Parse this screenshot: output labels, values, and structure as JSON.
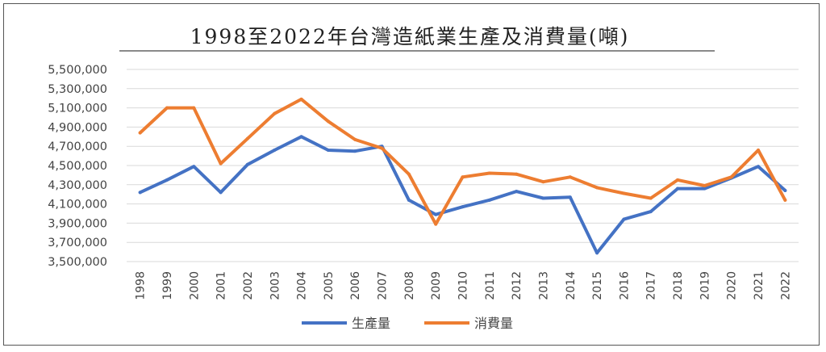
{
  "chart_data": {
    "type": "line",
    "title": "1998至2022年台灣造紙業生產及消費量(噸)",
    "xlabel": "",
    "ylabel": "",
    "x": [
      "1998",
      "1999",
      "2000",
      "2001",
      "2002",
      "2003",
      "2004",
      "2005",
      "2006",
      "2007",
      "2008",
      "2009",
      "2010",
      "2011",
      "2012",
      "2013",
      "2014",
      "2015",
      "2016",
      "2017",
      "2018",
      "2019",
      "2020",
      "2021",
      "2022"
    ],
    "yticks": [
      "3,500,000",
      "3,700,000",
      "3,900,000",
      "4,100,000",
      "4,300,000",
      "4,500,000",
      "4,700,000",
      "4,900,000",
      "5,100,000",
      "5,300,000",
      "5,500,000"
    ],
    "ylim": [
      3500000,
      5500000
    ],
    "grid": true,
    "legend": "bottom-center",
    "series": [
      {
        "name": "生產量",
        "color": "#4472C4",
        "values": [
          4220000,
          4350000,
          4490000,
          4220000,
          4510000,
          4660000,
          4800000,
          4660000,
          4650000,
          4700000,
          4140000,
          3990000,
          4070000,
          4140000,
          4230000,
          4160000,
          4170000,
          3590000,
          3940000,
          4020000,
          4260000,
          4260000,
          4370000,
          4490000,
          4240000
        ]
      },
      {
        "name": "消費量",
        "color": "#ED7D31",
        "values": [
          4840000,
          5100000,
          5100000,
          4520000,
          4780000,
          5040000,
          5190000,
          4960000,
          4770000,
          4680000,
          4410000,
          3890000,
          4380000,
          4420000,
          4410000,
          4330000,
          4380000,
          4270000,
          4210000,
          4160000,
          4350000,
          4290000,
          4380000,
          4660000,
          4140000
        ]
      }
    ]
  }
}
